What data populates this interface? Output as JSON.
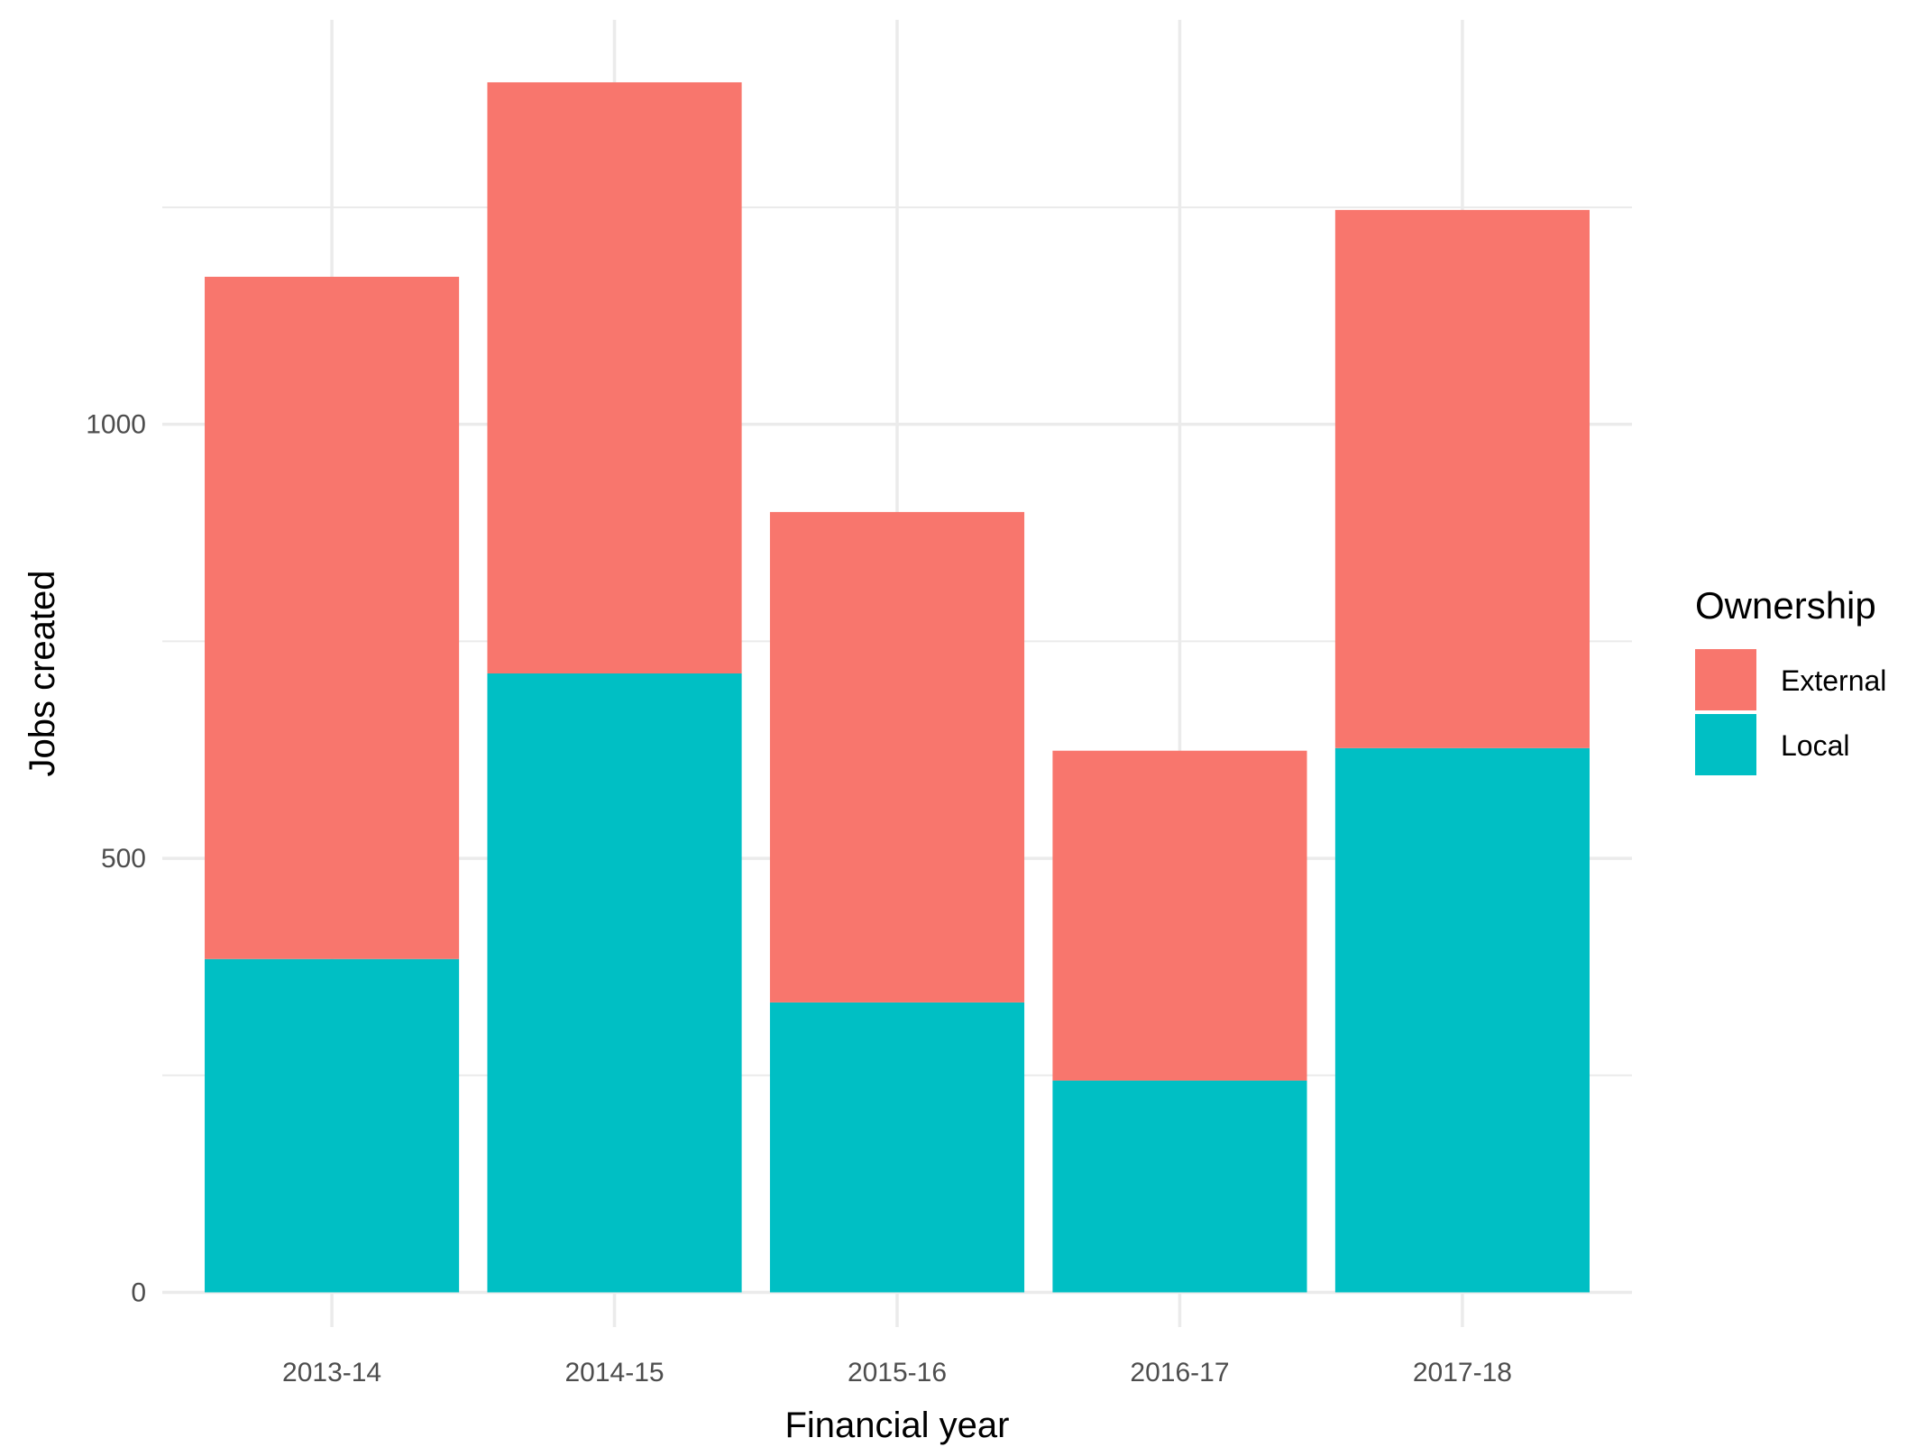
{
  "chart_data": {
    "type": "bar",
    "stacked": true,
    "categories": [
      "2013-14",
      "2014-15",
      "2015-16",
      "2016-17",
      "2017-18"
    ],
    "series": [
      {
        "name": "Local",
        "color": "#00BFC4",
        "values": [
          384,
          713,
          334,
          244,
          627
        ]
      },
      {
        "name": "External",
        "color": "#F8766D",
        "values": [
          786,
          681,
          565,
          380,
          620
        ]
      }
    ],
    "xlabel": "Financial year",
    "ylabel": "Jobs created",
    "ylim": [
      -40,
      1466
    ],
    "yticks": [
      0,
      500,
      1000
    ],
    "yticks_minor": [
      250,
      750,
      1250
    ],
    "legend": {
      "title": "Ownership",
      "position": "right",
      "entries": [
        "External",
        "Local"
      ]
    },
    "grid": true,
    "theme": "minimal"
  }
}
